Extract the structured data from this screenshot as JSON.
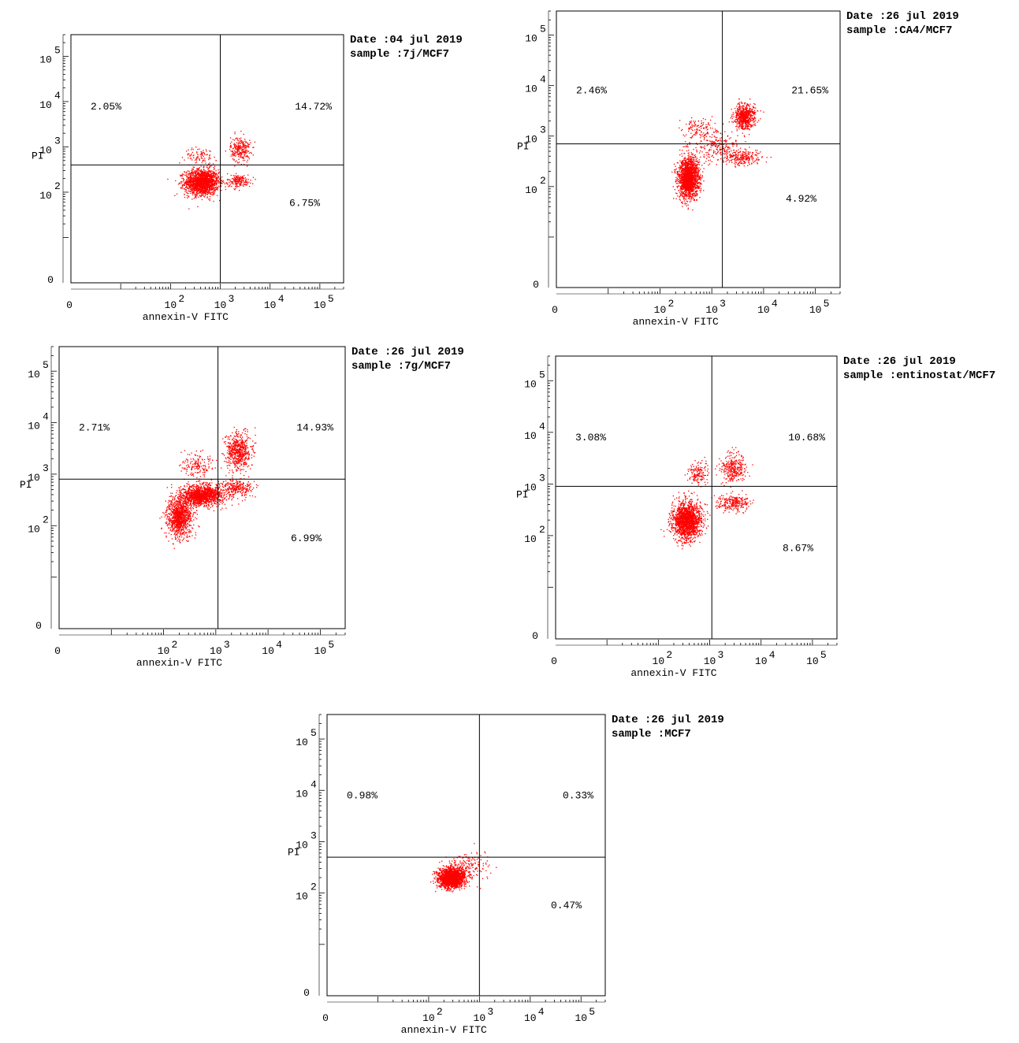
{
  "chart_data": [
    {
      "type": "scatter",
      "xlabel": "annexin-V FITC",
      "ylabel": "PI",
      "x_scale": "log",
      "y_scale": "log",
      "xlim": [
        1,
        300000
      ],
      "ylim": [
        1,
        300000
      ],
      "x_ticks": [
        "0",
        "10^2",
        "10^3",
        "10^4",
        "10^5"
      ],
      "y_ticks": [
        "0",
        "10^2",
        "10^3",
        "10^4",
        "10^5"
      ],
      "date": "Date :04 jul 2019",
      "sample": "sample :7j/MCF7",
      "quadrant_gate": {
        "x": 1000,
        "y": 400
      },
      "quadrants": {
        "upper_left": "2.05%",
        "upper_right": "14.72%",
        "lower_right": "6.75%"
      },
      "point_color": "#ff0000",
      "clusters": [
        {
          "x": 420,
          "y": 170,
          "n": 1700,
          "sx": 0.17,
          "sy": 0.14
        },
        {
          "x": 2500,
          "y": 900,
          "n": 260,
          "sx": 0.1,
          "sy": 0.14
        },
        {
          "x": 2300,
          "y": 180,
          "n": 170,
          "sx": 0.12,
          "sy": 0.07
        },
        {
          "x": 400,
          "y": 650,
          "n": 90,
          "sx": 0.16,
          "sy": 0.09
        }
      ]
    },
    {
      "type": "scatter",
      "xlabel": "annexin-V FITC",
      "ylabel": "PI",
      "x_scale": "log",
      "y_scale": "log",
      "xlim": [
        1,
        300000
      ],
      "ylim": [
        1,
        300000
      ],
      "x_ticks": [
        "0",
        "10^2",
        "10^3",
        "10^4",
        "10^5"
      ],
      "y_ticks": [
        "0",
        "10^2",
        "10^3",
        "10^4",
        "10^5"
      ],
      "date": "Date :26 jul 2019",
      "sample": "sample :CA4/MCF7",
      "quadrant_gate": {
        "x": 1600,
        "y": 700
      },
      "quadrants": {
        "upper_left": "2.46%",
        "upper_right": "21.65%",
        "lower_right": "4.92%"
      },
      "point_color": "#ff0000",
      "clusters": [
        {
          "x": 350,
          "y": 150,
          "n": 1800,
          "sx": 0.1,
          "sy": 0.2
        },
        {
          "x": 4200,
          "y": 2500,
          "n": 650,
          "sx": 0.1,
          "sy": 0.12
        },
        {
          "x": 4000,
          "y": 380,
          "n": 230,
          "sx": 0.18,
          "sy": 0.08
        },
        {
          "x": 550,
          "y": 1400,
          "n": 120,
          "sx": 0.16,
          "sy": 0.1
        },
        {
          "x": 1300,
          "y": 600,
          "n": 250,
          "sx": 0.22,
          "sy": 0.16
        }
      ]
    },
    {
      "type": "scatter",
      "xlabel": "annexin-V FITC",
      "ylabel": "PI",
      "x_scale": "log",
      "y_scale": "log",
      "xlim": [
        1,
        300000
      ],
      "ylim": [
        1,
        300000
      ],
      "x_ticks": [
        "0",
        "10^2",
        "10^3",
        "10^4",
        "10^5"
      ],
      "y_ticks": [
        "0",
        "10^2",
        "10^3",
        "10^4",
        "10^5"
      ],
      "date": "Date :26 jul 2019",
      "sample": "sample :7g/MCF7",
      "quadrant_gate": {
        "x": 1100,
        "y": 800
      },
      "quadrants": {
        "upper_left": "2.71%",
        "upper_right": "14.93%",
        "lower_right": "6.99%"
      },
      "point_color": "#ff0000",
      "clusters": [
        {
          "x": 200,
          "y": 150,
          "n": 1100,
          "sx": 0.12,
          "sy": 0.2
        },
        {
          "x": 550,
          "y": 400,
          "n": 1300,
          "sx": 0.2,
          "sy": 0.1
        },
        {
          "x": 2700,
          "y": 2800,
          "n": 600,
          "sx": 0.12,
          "sy": 0.18
        },
        {
          "x": 2600,
          "y": 550,
          "n": 250,
          "sx": 0.14,
          "sy": 0.08
        },
        {
          "x": 450,
          "y": 1500,
          "n": 160,
          "sx": 0.14,
          "sy": 0.12
        }
      ]
    },
    {
      "type": "scatter",
      "xlabel": "annexin-V FITC",
      "ylabel": "PI",
      "x_scale": "log",
      "y_scale": "log",
      "xlim": [
        1,
        300000
      ],
      "ylim": [
        1,
        300000
      ],
      "x_ticks": [
        "0",
        "10^2",
        "10^3",
        "10^4",
        "10^5"
      ],
      "y_ticks": [
        "0",
        "10^2",
        "10^3",
        "10^4",
        "10^5"
      ],
      "date": "Date :26 jul 2019",
      "sample": "sample :entinostat/MCF7",
      "quadrant_gate": {
        "x": 1100,
        "y": 900
      },
      "quadrants": {
        "upper_left": "3.08%",
        "upper_right": "10.68%",
        "lower_right": "8.67%"
      },
      "point_color": "#ff0000",
      "clusters": [
        {
          "x": 350,
          "y": 200,
          "n": 1700,
          "sx": 0.14,
          "sy": 0.18
        },
        {
          "x": 2800,
          "y": 2000,
          "n": 320,
          "sx": 0.12,
          "sy": 0.14
        },
        {
          "x": 2800,
          "y": 450,
          "n": 260,
          "sx": 0.16,
          "sy": 0.08
        },
        {
          "x": 600,
          "y": 1600,
          "n": 150,
          "sx": 0.1,
          "sy": 0.12
        }
      ]
    },
    {
      "type": "scatter",
      "xlabel": "annexin-V FITC",
      "ylabel": "PI",
      "x_scale": "log",
      "y_scale": "log",
      "xlim": [
        1,
        300000
      ],
      "ylim": [
        1,
        300000
      ],
      "x_ticks": [
        "0",
        "10^2",
        "10^3",
        "10^4",
        "10^5"
      ],
      "y_ticks": [
        "0",
        "10^2",
        "10^3",
        "10^4",
        "10^5"
      ],
      "date": "Date :26 jul 2019",
      "sample": "sample :MCF7",
      "quadrant_gate": {
        "x": 1000,
        "y": 500
      },
      "quadrants": {
        "upper_left": "0.98%",
        "upper_right": "0.33%",
        "lower_right": "0.47%"
      },
      "point_color": "#ff0000",
      "clusters": [
        {
          "x": 280,
          "y": 200,
          "n": 1800,
          "sx": 0.13,
          "sy": 0.1
        },
        {
          "x": 600,
          "y": 350,
          "n": 150,
          "sx": 0.2,
          "sy": 0.14
        }
      ]
    }
  ]
}
